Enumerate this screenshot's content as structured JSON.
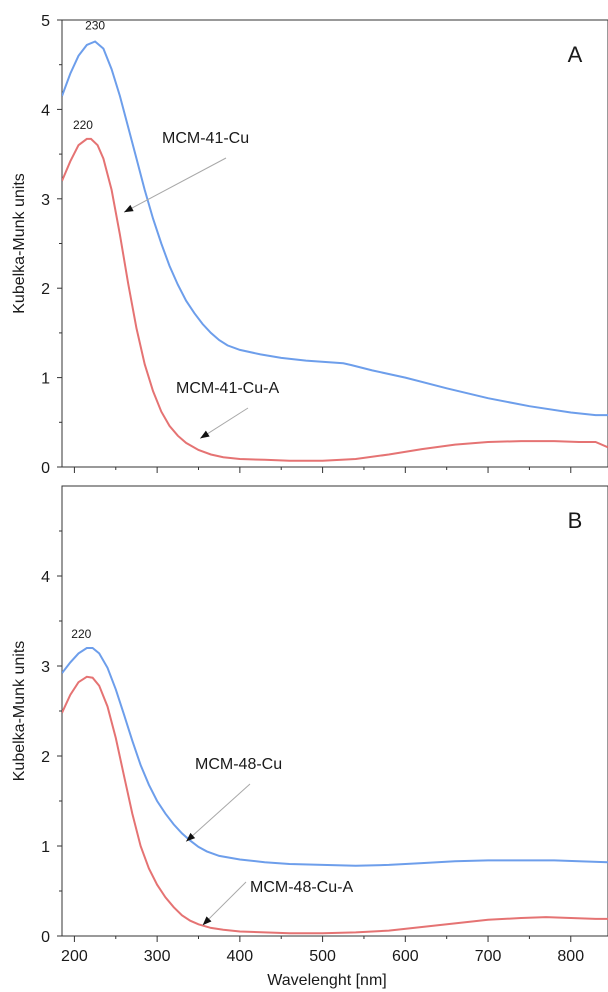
{
  "chart_data": [
    {
      "type": "line",
      "panel_label": "A",
      "xlabel": "",
      "ylabel": "Kubelka-Munk units",
      "xlim": [
        185,
        845
      ],
      "ylim": [
        0,
        5
      ],
      "x_ticks": [],
      "y_ticks": [
        "0",
        "1",
        "2",
        "3",
        "4",
        "5"
      ],
      "grid": false,
      "series": [
        {
          "name": "MCM-41-Cu",
          "color": "#6d9eeb",
          "points": [
            [
              185,
              4.15
            ],
            [
              195,
              4.4
            ],
            [
              205,
              4.6
            ],
            [
              215,
              4.72
            ],
            [
              225,
              4.76
            ],
            [
              235,
              4.68
            ],
            [
              245,
              4.45
            ],
            [
              255,
              4.15
            ],
            [
              265,
              3.8
            ],
            [
              275,
              3.45
            ],
            [
              285,
              3.1
            ],
            [
              295,
              2.78
            ],
            [
              305,
              2.5
            ],
            [
              315,
              2.25
            ],
            [
              325,
              2.04
            ],
            [
              335,
              1.86
            ],
            [
              345,
              1.72
            ],
            [
              355,
              1.6
            ],
            [
              365,
              1.5
            ],
            [
              375,
              1.42
            ],
            [
              385,
              1.36
            ],
            [
              400,
              1.31
            ],
            [
              425,
              1.26
            ],
            [
              450,
              1.22
            ],
            [
              480,
              1.19
            ],
            [
              510,
              1.17
            ],
            [
              525,
              1.16
            ],
            [
              535,
              1.14
            ],
            [
              560,
              1.08
            ],
            [
              600,
              1.0
            ],
            [
              650,
              0.88
            ],
            [
              700,
              0.77
            ],
            [
              750,
              0.68
            ],
            [
              800,
              0.61
            ],
            [
              830,
              0.58
            ],
            [
              845,
              0.58
            ]
          ],
          "annotation": "MCM-41-Cu",
          "peak_label": "230",
          "peak": [
            225,
            4.76
          ]
        },
        {
          "name": "MCM-41-Cu-A",
          "color": "#e57373",
          "points": [
            [
              185,
              3.2
            ],
            [
              195,
              3.42
            ],
            [
              205,
              3.6
            ],
            [
              215,
              3.67
            ],
            [
              220,
              3.67
            ],
            [
              228,
              3.6
            ],
            [
              235,
              3.45
            ],
            [
              245,
              3.1
            ],
            [
              255,
              2.6
            ],
            [
              265,
              2.05
            ],
            [
              275,
              1.55
            ],
            [
              285,
              1.15
            ],
            [
              295,
              0.85
            ],
            [
              305,
              0.62
            ],
            [
              315,
              0.46
            ],
            [
              325,
              0.35
            ],
            [
              335,
              0.27
            ],
            [
              350,
              0.19
            ],
            [
              365,
              0.14
            ],
            [
              380,
              0.11
            ],
            [
              400,
              0.09
            ],
            [
              430,
              0.08
            ],
            [
              460,
              0.07
            ],
            [
              500,
              0.07
            ],
            [
              540,
              0.09
            ],
            [
              580,
              0.14
            ],
            [
              620,
              0.2
            ],
            [
              660,
              0.25
            ],
            [
              700,
              0.28
            ],
            [
              740,
              0.29
            ],
            [
              780,
              0.29
            ],
            [
              810,
              0.28
            ],
            [
              830,
              0.28
            ],
            [
              845,
              0.22
            ]
          ],
          "annotation": "MCM-41-Cu-A",
          "peak_label": "220",
          "peak": [
            220,
            3.67
          ]
        }
      ]
    },
    {
      "type": "line",
      "panel_label": "B",
      "xlabel": "Wavelenght [nm]",
      "ylabel": "Kubelka-Munk units",
      "xlim": [
        185,
        845
      ],
      "ylim": [
        0,
        5
      ],
      "x_ticks": [
        "200",
        "300",
        "400",
        "500",
        "600",
        "700",
        "800"
      ],
      "y_ticks": [
        "0",
        "1",
        "2",
        "3",
        "4"
      ],
      "grid": false,
      "series": [
        {
          "name": "MCM-48-Cu",
          "color": "#6d9eeb",
          "points": [
            [
              185,
              2.92
            ],
            [
              195,
              3.04
            ],
            [
              205,
              3.14
            ],
            [
              215,
              3.2
            ],
            [
              222,
              3.2
            ],
            [
              230,
              3.14
            ],
            [
              240,
              2.98
            ],
            [
              250,
              2.74
            ],
            [
              260,
              2.46
            ],
            [
              270,
              2.17
            ],
            [
              280,
              1.9
            ],
            [
              290,
              1.68
            ],
            [
              300,
              1.5
            ],
            [
              310,
              1.36
            ],
            [
              320,
              1.24
            ],
            [
              330,
              1.14
            ],
            [
              340,
              1.06
            ],
            [
              350,
              0.99
            ],
            [
              360,
              0.94
            ],
            [
              375,
              0.89
            ],
            [
              400,
              0.85
            ],
            [
              430,
              0.82
            ],
            [
              460,
              0.8
            ],
            [
              500,
              0.79
            ],
            [
              540,
              0.78
            ],
            [
              580,
              0.79
            ],
            [
              620,
              0.81
            ],
            [
              660,
              0.83
            ],
            [
              700,
              0.84
            ],
            [
              740,
              0.84
            ],
            [
              780,
              0.84
            ],
            [
              810,
              0.83
            ],
            [
              845,
              0.82
            ]
          ],
          "annotation": "MCM-48-Cu",
          "peak_label": "220",
          "peak": [
            218,
            3.2
          ]
        },
        {
          "name": "MCM-48-Cu-A",
          "color": "#e57373",
          "points": [
            [
              185,
              2.48
            ],
            [
              195,
              2.68
            ],
            [
              205,
              2.82
            ],
            [
              215,
              2.88
            ],
            [
              222,
              2.87
            ],
            [
              230,
              2.78
            ],
            [
              240,
              2.55
            ],
            [
              250,
              2.2
            ],
            [
              260,
              1.78
            ],
            [
              270,
              1.36
            ],
            [
              280,
              1.0
            ],
            [
              290,
              0.75
            ],
            [
              300,
              0.57
            ],
            [
              310,
              0.43
            ],
            [
              320,
              0.32
            ],
            [
              330,
              0.23
            ],
            [
              340,
              0.17
            ],
            [
              350,
              0.13
            ],
            [
              365,
              0.09
            ],
            [
              380,
              0.07
            ],
            [
              400,
              0.05
            ],
            [
              430,
              0.04
            ],
            [
              460,
              0.03
            ],
            [
              500,
              0.03
            ],
            [
              540,
              0.04
            ],
            [
              580,
              0.06
            ],
            [
              620,
              0.1
            ],
            [
              660,
              0.14
            ],
            [
              700,
              0.18
            ],
            [
              740,
              0.2
            ],
            [
              770,
              0.21
            ],
            [
              800,
              0.2
            ],
            [
              830,
              0.19
            ],
            [
              845,
              0.19
            ]
          ],
          "annotation": "MCM-48-Cu-A",
          "peak_label": "",
          "peak": [
            218,
            2.88
          ]
        }
      ]
    }
  ]
}
